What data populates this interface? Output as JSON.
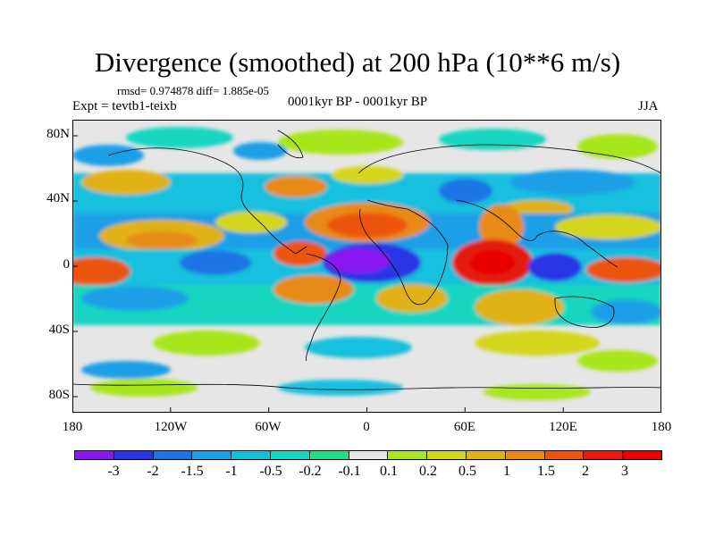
{
  "title": "Divergence (smoothed) at 200 hPa (10**6 m/s)",
  "stats": "rmsd= 0.974878 diff= 1.885e-05",
  "experiment": "Expt = tevtb1-teixb",
  "period": "0001kyr BP - 0001kyr BP",
  "season": "JJA",
  "lat_labels": [
    "80N",
    "40N",
    "0",
    "40S",
    "80S"
  ],
  "lon_labels": [
    "180",
    "120W",
    "60W",
    "0",
    "60E",
    "120E",
    "180"
  ],
  "colorbar": {
    "labels": [
      "-3",
      "-2",
      "-1.5",
      "-1",
      "-0.5",
      "-0.2",
      "-0.1",
      "0.1",
      "0.2",
      "0.5",
      "1",
      "1.5",
      "2",
      "3"
    ],
    "colors": [
      "#8a17f0",
      "#2a35e6",
      "#1a74e4",
      "#1a9fe6",
      "#12c0de",
      "#14d6c2",
      "#22dc8e",
      "#e6e6e6",
      "#a8e61e",
      "#d4d61c",
      "#e0b218",
      "#e88a14",
      "#ec5410",
      "#e41c0c",
      "#e80000"
    ]
  },
  "colors": {
    "neutral": "#e6e6e6",
    "coast": "#000000"
  }
}
